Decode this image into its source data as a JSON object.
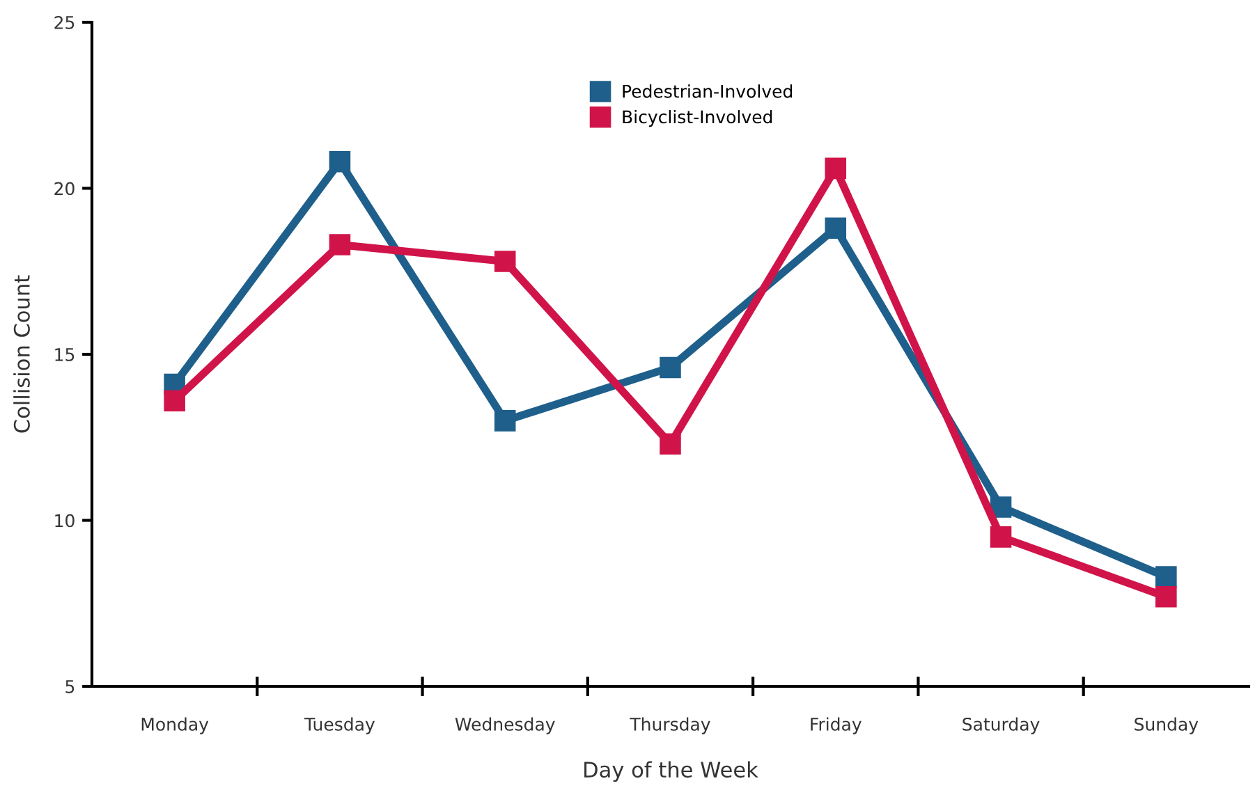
{
  "chart_data": {
    "type": "line",
    "xlabel": "Day of the Week",
    "ylabel": "Collision Count",
    "categories": [
      "Monday",
      "Tuesday",
      "Wednesday",
      "Thursday",
      "Friday",
      "Saturday",
      "Sunday"
    ],
    "series": [
      {
        "name": "Pedestrian-Involved",
        "color": "#1f5f8b",
        "values": [
          14.1,
          20.8,
          13.0,
          14.6,
          18.8,
          10.4,
          8.3
        ]
      },
      {
        "name": "Bicyclist-Involved",
        "color": "#d0144a",
        "values": [
          13.6,
          18.3,
          17.8,
          12.3,
          20.6,
          9.5,
          7.7
        ]
      }
    ],
    "ylim": [
      5,
      25
    ],
    "yticks": [
      5,
      10,
      15,
      20,
      25
    ],
    "grid": false,
    "legend": "top",
    "marker": "square",
    "line_style": "solid"
  }
}
